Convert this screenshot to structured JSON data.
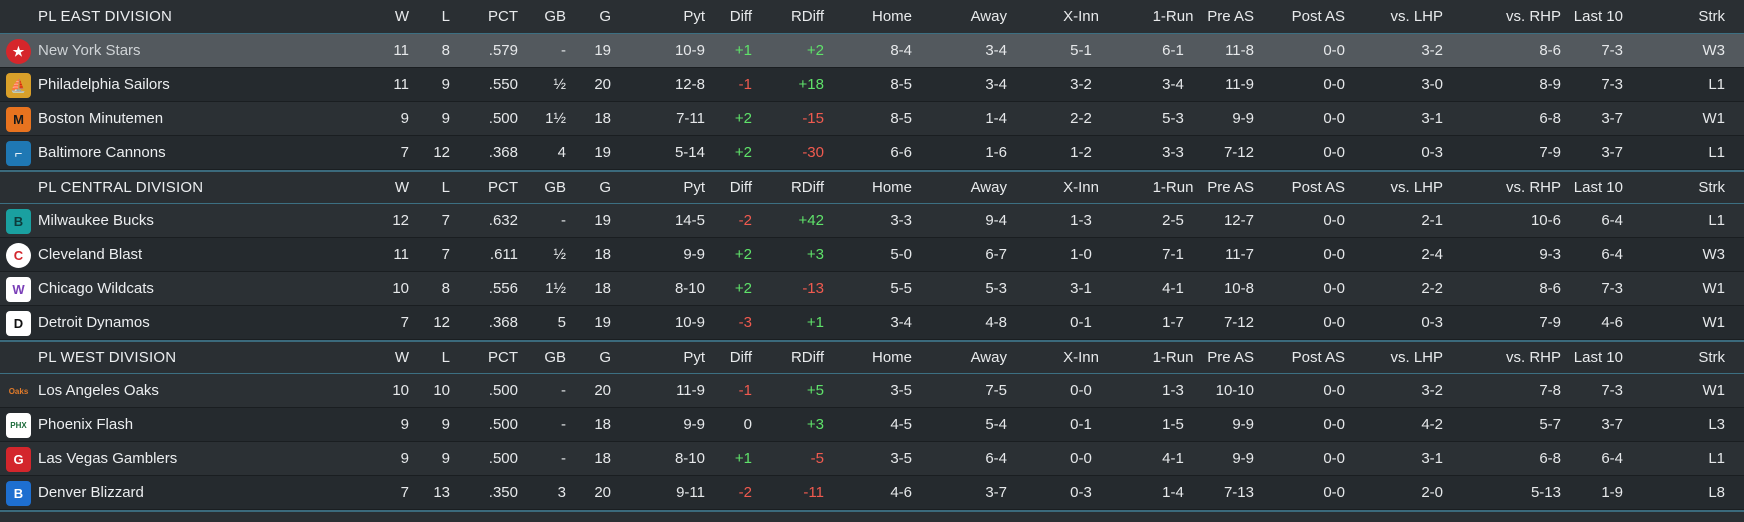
{
  "columns": [
    "W",
    "L",
    "PCT",
    "GB",
    "G",
    "Pyt",
    "Diff",
    "RDiff",
    "Home",
    "Away",
    "X-Inn",
    "1-Run",
    "Pre AS",
    "Post AS",
    "vs. LHP",
    "vs. RHP",
    "Last 10",
    "Strk"
  ],
  "divisions": [
    {
      "name": "PL EAST DIVISION",
      "teams": [
        {
          "name": "New York Stars",
          "logo": "star-logo-icon",
          "stats": [
            "11",
            "8",
            ".579",
            "-",
            "19",
            "10-9",
            "+1",
            "+2",
            "8-4",
            "3-4",
            "5-1",
            "6-1",
            "11-8",
            "0-0",
            "3-2",
            "8-6",
            "7-3",
            "W3"
          ]
        },
        {
          "name": "Philadelphia Sailors",
          "logo": "sailors-logo-icon",
          "stats": [
            "11",
            "9",
            ".550",
            "½",
            "20",
            "12-8",
            "-1",
            "+18",
            "8-5",
            "3-4",
            "3-2",
            "3-4",
            "11-9",
            "0-0",
            "3-0",
            "8-9",
            "7-3",
            "L1"
          ]
        },
        {
          "name": "Boston Minutemen",
          "logo": "minutemen-logo-icon",
          "stats": [
            "9",
            "9",
            ".500",
            "1½",
            "18",
            "7-11",
            "+2",
            "-15",
            "8-5",
            "1-4",
            "2-2",
            "5-3",
            "9-9",
            "0-0",
            "3-1",
            "6-8",
            "3-7",
            "W1"
          ]
        },
        {
          "name": "Baltimore Cannons",
          "logo": "cannons-logo-icon",
          "stats": [
            "7",
            "12",
            ".368",
            "4",
            "19",
            "5-14",
            "+2",
            "-30",
            "6-6",
            "1-6",
            "1-2",
            "3-3",
            "7-12",
            "0-0",
            "0-3",
            "7-9",
            "3-7",
            "L1"
          ]
        }
      ]
    },
    {
      "name": "PL CENTRAL DIVISION",
      "teams": [
        {
          "name": "Milwaukee Bucks",
          "logo": "bucks-logo-icon",
          "stats": [
            "12",
            "7",
            ".632",
            "-",
            "19",
            "14-5",
            "-2",
            "+42",
            "3-3",
            "9-4",
            "1-3",
            "2-5",
            "12-7",
            "0-0",
            "2-1",
            "10-6",
            "6-4",
            "L1"
          ]
        },
        {
          "name": "Cleveland Blast",
          "logo": "blast-logo-icon",
          "stats": [
            "11",
            "7",
            ".611",
            "½",
            "18",
            "9-9",
            "+2",
            "+3",
            "5-0",
            "6-7",
            "1-0",
            "7-1",
            "11-7",
            "0-0",
            "2-4",
            "9-3",
            "6-4",
            "W3"
          ]
        },
        {
          "name": "Chicago Wildcats",
          "logo": "wildcats-logo-icon",
          "stats": [
            "10",
            "8",
            ".556",
            "1½",
            "18",
            "8-10",
            "+2",
            "-13",
            "5-5",
            "5-3",
            "3-1",
            "4-1",
            "10-8",
            "0-0",
            "2-2",
            "8-6",
            "7-3",
            "W1"
          ]
        },
        {
          "name": "Detroit Dynamos",
          "logo": "dynamos-logo-icon",
          "stats": [
            "7",
            "12",
            ".368",
            "5",
            "19",
            "10-9",
            "-3",
            "+1",
            "3-4",
            "4-8",
            "0-1",
            "1-7",
            "7-12",
            "0-0",
            "0-3",
            "7-9",
            "4-6",
            "W1"
          ]
        }
      ]
    },
    {
      "name": "PL WEST DIVISION",
      "teams": [
        {
          "name": "Los Angeles Oaks",
          "logo": "oaks-logo-icon",
          "stats": [
            "10",
            "10",
            ".500",
            "-",
            "20",
            "11-9",
            "-1",
            "+5",
            "3-5",
            "7-5",
            "0-0",
            "1-3",
            "10-10",
            "0-0",
            "3-2",
            "7-8",
            "7-3",
            "W1"
          ]
        },
        {
          "name": "Phoenix Flash",
          "logo": "flash-logo-icon",
          "stats": [
            "9",
            "9",
            ".500",
            "-",
            "18",
            "9-9",
            "0",
            "+3",
            "4-5",
            "5-4",
            "0-1",
            "1-5",
            "9-9",
            "0-0",
            "4-2",
            "5-7",
            "3-7",
            "L3"
          ]
        },
        {
          "name": "Las Vegas Gamblers",
          "logo": "gamblers-logo-icon",
          "stats": [
            "9",
            "9",
            ".500",
            "-",
            "18",
            "8-10",
            "+1",
            "-5",
            "3-5",
            "6-4",
            "0-0",
            "4-1",
            "9-9",
            "0-0",
            "3-1",
            "6-8",
            "6-4",
            "L1"
          ]
        },
        {
          "name": "Denver Blizzard",
          "logo": "blizzard-logo-icon",
          "stats": [
            "7",
            "13",
            ".350",
            "3",
            "20",
            "9-11",
            "-2",
            "-11",
            "4-6",
            "3-7",
            "0-3",
            "1-4",
            "7-13",
            "0-0",
            "2-0",
            "5-13",
            "1-9",
            "L8"
          ]
        }
      ]
    }
  ],
  "selected_team": "New York Stars",
  "colors": {
    "positive": "#5fe26a",
    "negative": "#f05a4f",
    "accent": "#3b6a7c"
  }
}
